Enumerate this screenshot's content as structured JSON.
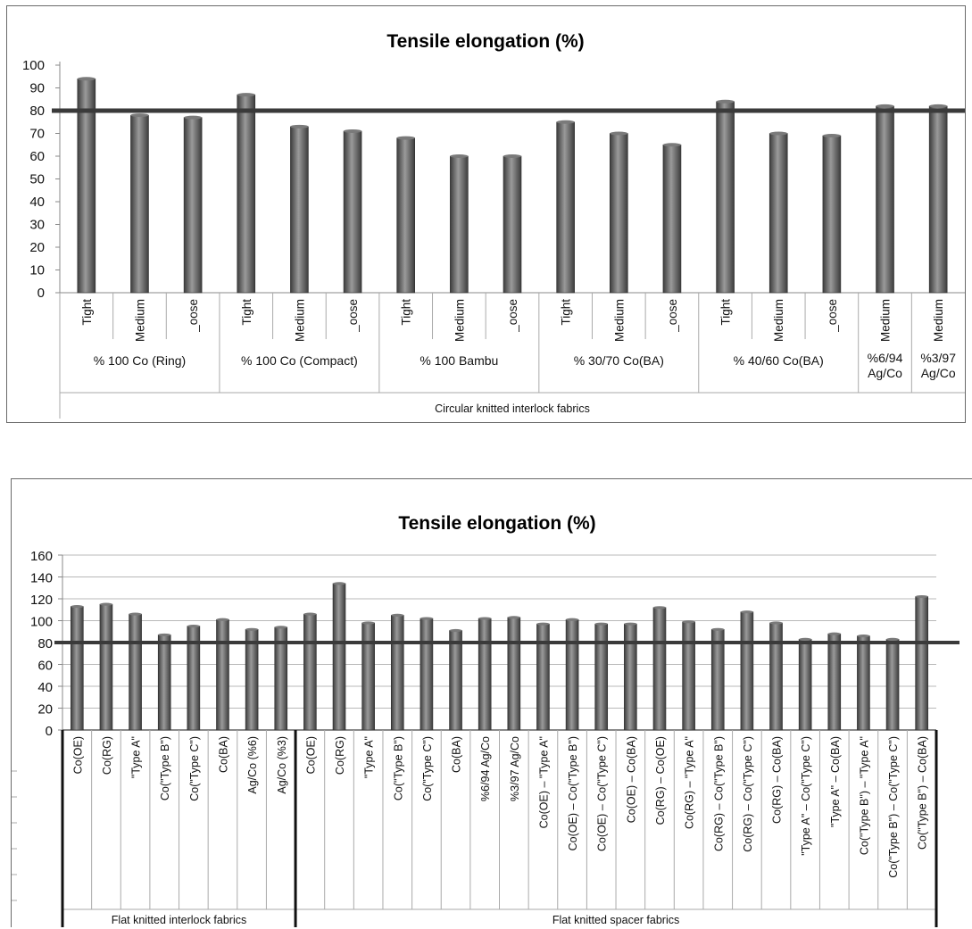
{
  "chart_data": [
    {
      "type": "bar",
      "title": "Tensile elongation (%)",
      "ylim": [
        0,
        100
      ],
      "yticks": [
        0,
        10,
        20,
        30,
        40,
        50,
        60,
        70,
        80,
        90,
        100
      ],
      "reference_line": 80,
      "grid": false,
      "categories": [
        "Tight",
        "Medium",
        "_oose",
        "Tight",
        "Medium",
        "_oose",
        "Tight",
        "Medium",
        "_oose",
        "Tight",
        "Medium",
        "_oose",
        "Tight",
        "Medium",
        "_oose",
        "Medium",
        "Medium"
      ],
      "values": [
        94,
        78,
        77,
        87,
        73,
        71,
        68,
        60,
        60,
        75,
        70,
        65,
        84,
        70,
        69,
        82,
        82
      ],
      "groups": [
        {
          "label": "% 100 Co (Ring)",
          "label_lines": [
            "% 100 Co (Ring)"
          ],
          "count": 3
        },
        {
          "label": "% 100 Co (Compact)",
          "label_lines": [
            "% 100 Co (Compact)"
          ],
          "count": 3
        },
        {
          "label": "% 100 Bambu",
          "label_lines": [
            "% 100 Bambu"
          ],
          "count": 3
        },
        {
          "label": "% 30/70  Co(BA)",
          "label_lines": [
            "% 30/70  Co(BA)"
          ],
          "count": 3
        },
        {
          "label": "% 40/60  Co(BA)",
          "label_lines": [
            "% 40/60  Co(BA)"
          ],
          "count": 3
        },
        {
          "label": "%6/94 Ag/Co",
          "label_lines": [
            "%6/94",
            "Ag/Co"
          ],
          "count": 1
        },
        {
          "label": "%3/97 Ag/Co",
          "label_lines": [
            "%3/97",
            "Ag/Co"
          ],
          "count": 1
        }
      ],
      "super_group": "Circular knitted interlock fabrics"
    },
    {
      "type": "bar",
      "title": "Tensile elongation (%)",
      "ylim": [
        0,
        160
      ],
      "yticks": [
        0,
        20,
        40,
        60,
        80,
        100,
        120,
        140,
        160
      ],
      "reference_line": 80,
      "grid": true,
      "categories": [
        "Co(OE)",
        "Co(RG)",
        "\"Type A\"",
        "Co(\"Type B\")",
        "Co(\"Type C\")",
        "Co(BA)",
        "Ag/Co (%6)",
        "Ag/Co (%3)",
        "Co(OE)",
        "Co(RG)",
        "\"Type A\"",
        "Co(\"Type B\")",
        "Co(\"Type C\")",
        "Co(BA)",
        "%6/94  Ag/Co",
        "%3/97  Ag/Co",
        "Co(OE) – \"Type A\"",
        "Co(OE) – Co(\"Type B\")",
        "Co(OE) – Co(\"Type C\")",
        "Co(OE) – Co(BA)",
        "Co(RG) – Co(OE)",
        "Co(RG) – \"Type A\"",
        "Co(RG) – Co(\"Type B\")",
        "Co(RG) – Co(\"Type C\")",
        "Co(RG) – Co(BA)",
        "\"Type A\" – Co(\"Type C\")",
        "\"Type A\" – Co(BA)",
        "Co(\"Type B\") – \"Type A\"",
        "Co(\"Type B\") – Co(\"Type C\")",
        "Co(\"Type B\") – Co(BA)"
      ],
      "values": [
        113,
        115,
        106,
        87,
        95,
        101,
        92,
        94,
        106,
        134,
        98,
        105,
        102,
        91,
        102,
        103,
        97,
        101,
        97,
        97,
        112,
        99,
        92,
        108,
        98,
        83,
        88,
        86,
        83,
        122
      ],
      "groups": [
        {
          "label": "Flat knitted interlock fabrics",
          "count": 8
        },
        {
          "label": "Flat knitted spacer fabrics",
          "count": 22
        }
      ]
    }
  ],
  "colors": {
    "bar_dark": "#3c3c3c",
    "bar_light": "#9a9a9a",
    "reference_line": "#3a3a3a",
    "gridline": "#b8b8b8",
    "frame": "#6a6a6a"
  }
}
